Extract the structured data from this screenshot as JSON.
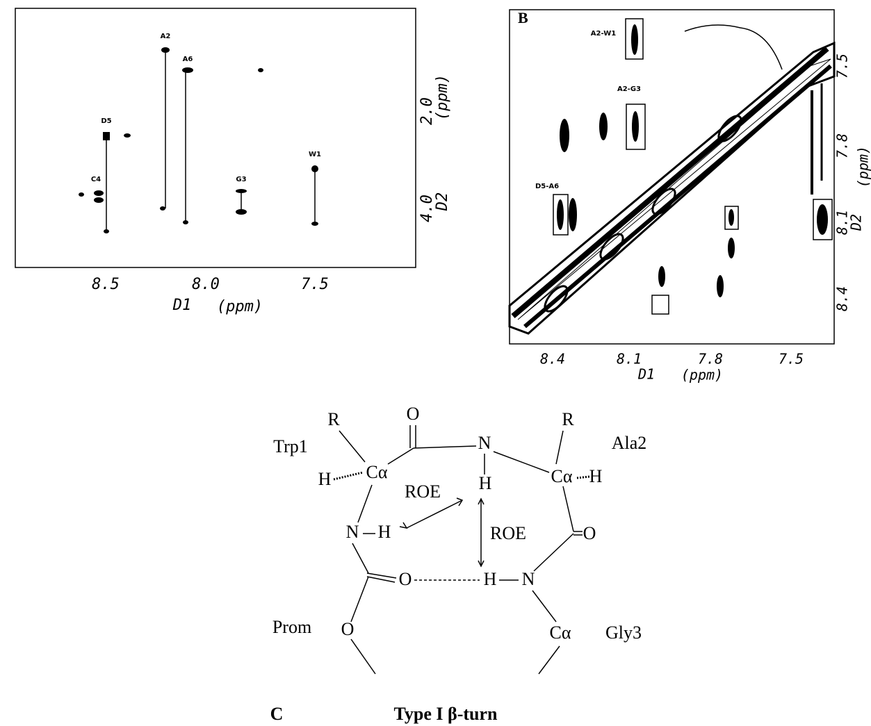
{
  "panel_a": {
    "x_ticks": [
      "8.5",
      "8.0",
      "7.5"
    ],
    "x_label": "D1",
    "x_unit": "(ppm)",
    "y_ticks": [
      "2.0",
      "4.0"
    ],
    "y_label": "D2",
    "y_unit": "(ppm)",
    "peaks": [
      "A2",
      "A6",
      "D5",
      "C4",
      "G3",
      "W1"
    ]
  },
  "panel_b": {
    "letter": "B",
    "x_ticks": [
      "8.4",
      "8.1",
      "7.8",
      "7.5"
    ],
    "x_label": "D1",
    "x_unit": "(ppm)",
    "y_ticks": [
      "7.5",
      "7.8",
      "8.1",
      "8.4"
    ],
    "y_label": "D2",
    "y_unit": "(ppm)",
    "cross_peaks": [
      "A2-W1",
      "A2-G3",
      "D5-A6"
    ]
  },
  "panel_c": {
    "letter": "C",
    "title": "Type I β-turn",
    "residues": [
      "Trp1",
      "Ala2",
      "Gly3",
      "Prom"
    ],
    "atoms": [
      "R",
      "O",
      "N",
      "R",
      "H",
      "Cα",
      "Cα",
      "H",
      "H",
      "N",
      "H",
      "O",
      "O",
      "H",
      "N",
      "O",
      "Cα"
    ],
    "roe": [
      "ROE",
      "ROE"
    ]
  }
}
